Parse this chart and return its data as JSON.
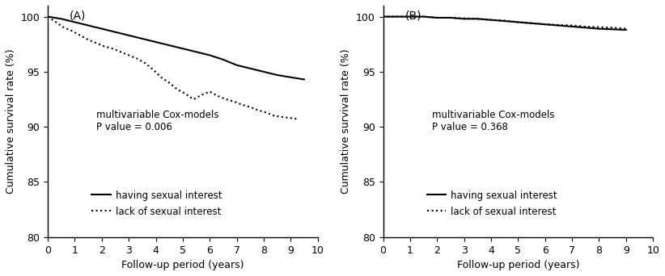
{
  "panel_A": {
    "label": "(A)",
    "pvalue_text": "multivariable Cox-models\nP value = 0.006",
    "solid_x": [
      0,
      0.5,
      1.0,
      1.5,
      2.0,
      2.5,
      3.0,
      3.5,
      4.0,
      4.5,
      5.0,
      5.5,
      6.0,
      6.5,
      7.0,
      7.5,
      8.0,
      8.5,
      9.0,
      9.5
    ],
    "solid_y": [
      100,
      99.8,
      99.5,
      99.2,
      98.9,
      98.6,
      98.3,
      98.0,
      97.7,
      97.4,
      97.1,
      96.8,
      96.5,
      96.1,
      95.6,
      95.3,
      95.0,
      94.7,
      94.5,
      94.3
    ],
    "dotted_x": [
      0,
      0.3,
      0.6,
      0.9,
      1.2,
      1.5,
      1.8,
      2.1,
      2.4,
      2.7,
      3.0,
      3.3,
      3.6,
      3.9,
      4.2,
      4.5,
      4.8,
      5.1,
      5.4,
      5.7,
      6.0,
      6.3,
      6.6,
      6.9,
      7.2,
      7.5,
      7.8,
      8.1,
      8.4,
      8.7,
      9.0,
      9.3
    ],
    "dotted_y": [
      100,
      99.5,
      99.0,
      98.7,
      98.3,
      97.9,
      97.6,
      97.3,
      97.1,
      96.8,
      96.5,
      96.2,
      95.8,
      95.2,
      94.5,
      94.0,
      93.4,
      93.0,
      92.5,
      92.9,
      93.2,
      92.8,
      92.5,
      92.3,
      92.0,
      91.8,
      91.5,
      91.3,
      91.0,
      90.9,
      90.8,
      90.7
    ]
  },
  "panel_B": {
    "label": "(B)",
    "pvalue_text": "multivariable Cox-models\nP value = 0.368",
    "solid_x": [
      0,
      0.5,
      1.0,
      1.5,
      2.0,
      2.5,
      3.0,
      3.5,
      4.0,
      4.5,
      5.0,
      5.5,
      6.0,
      6.5,
      7.0,
      7.5,
      8.0,
      8.5,
      9.0
    ],
    "solid_y": [
      100,
      100,
      100,
      100,
      99.9,
      99.9,
      99.8,
      99.8,
      99.7,
      99.6,
      99.5,
      99.4,
      99.3,
      99.2,
      99.1,
      99.0,
      98.9,
      98.85,
      98.8
    ],
    "dotted_x": [
      0,
      0.5,
      1.0,
      1.5,
      2.0,
      2.5,
      3.0,
      3.5,
      4.0,
      4.5,
      5.0,
      5.5,
      6.0,
      6.5,
      7.0,
      7.5,
      8.0,
      8.5,
      9.0
    ],
    "dotted_y": [
      100,
      100,
      100,
      100,
      99.9,
      99.9,
      99.85,
      99.8,
      99.7,
      99.65,
      99.5,
      99.4,
      99.3,
      99.25,
      99.2,
      99.1,
      99.05,
      99.0,
      98.9
    ]
  },
  "ylim": [
    80,
    101
  ],
  "xlim": [
    0,
    10
  ],
  "yticks": [
    80,
    85,
    90,
    95,
    100
  ],
  "xticks": [
    0,
    1,
    2,
    3,
    4,
    5,
    6,
    7,
    8,
    9,
    10
  ],
  "ylabel": "Cumulative survival rate (%)",
  "xlabel": "Follow-up period (years)",
  "legend_solid": "having sexual interest",
  "legend_dotted": "lack of sexual interest",
  "line_color": "#000000",
  "bg_color": "#ffffff",
  "text_color": "#000000",
  "fontsize_label": 9,
  "fontsize_title": 10,
  "fontsize_annotation": 8.5,
  "fontsize_legend": 8.5,
  "fontsize_axis": 9
}
